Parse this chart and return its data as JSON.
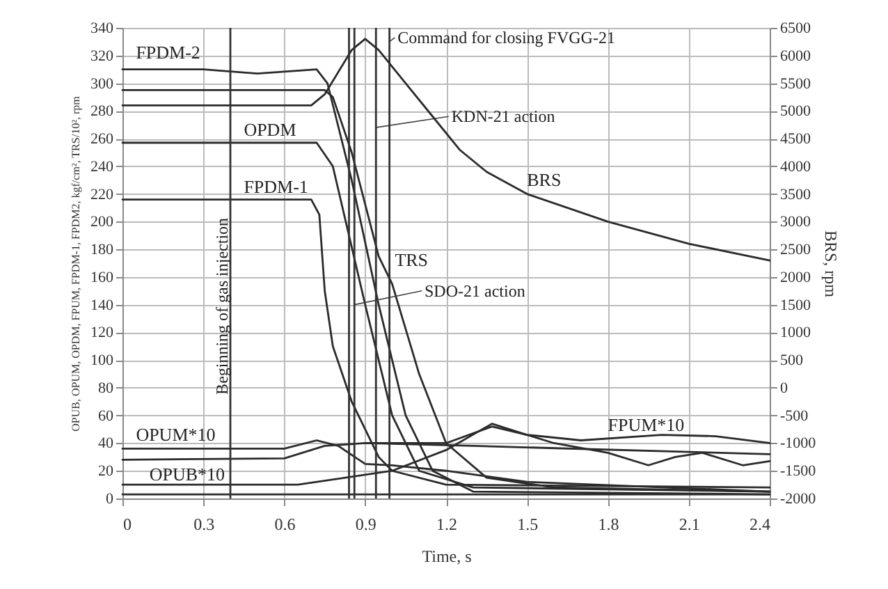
{
  "chart_data": {
    "type": "line",
    "xlabel": "Time, s",
    "ylabel": "OPUB, OPUM, OPDM, FPUM, FPDM-1, FPDM2, kgf/cm², TRS/10², rpm",
    "y2label": "BRS, rpm",
    "xlim": [
      0,
      2.4
    ],
    "xticks": [
      0,
      0.3,
      0.6,
      0.9,
      1.2,
      1.5,
      1.8,
      2.1,
      2.4
    ],
    "ylim": [
      0,
      340
    ],
    "yticks": [
      0,
      20,
      40,
      60,
      80,
      100,
      120,
      140,
      160,
      180,
      200,
      220,
      240,
      260,
      280,
      300,
      320,
      340
    ],
    "y2lim": [
      -2000,
      6500
    ],
    "y2ticks": [
      -2000,
      -1500,
      -1000,
      -500,
      0,
      500,
      1000,
      1500,
      2000,
      2500,
      3000,
      3500,
      4000,
      4500,
      5000,
      5500,
      6000,
      6500
    ],
    "grid": true,
    "legend": false,
    "line_style": "solid",
    "marker": "none",
    "series": [
      {
        "name": "FPDM-2",
        "color": "#2b2b2b",
        "x": [
          0,
          0.3,
          0.5,
          0.72,
          0.76,
          0.85,
          0.95,
          1.05,
          1.15,
          1.3,
          2.4
        ],
        "values": [
          310,
          310,
          307,
          310,
          300,
          230,
          140,
          60,
          20,
          5,
          3
        ]
      },
      {
        "name": "TRS",
        "color": "#2b2b2b",
        "x": [
          0,
          0.4,
          0.75,
          0.78,
          0.85,
          0.95,
          1.0,
          1.1,
          1.2,
          1.35,
          1.6,
          2.4
        ],
        "values": [
          295,
          295,
          295,
          290,
          250,
          175,
          155,
          90,
          40,
          15,
          8,
          5
        ]
      },
      {
        "name": "OPDM",
        "color": "#2b2b2b",
        "x": [
          0,
          0.3,
          0.72,
          0.78,
          0.9,
          1.0,
          1.1,
          1.3,
          2.4
        ],
        "values": [
          257,
          257,
          257,
          240,
          140,
          60,
          20,
          8,
          5
        ]
      },
      {
        "name": "FPDM-1",
        "color": "#2b2b2b",
        "x": [
          0,
          0.3,
          0.7,
          0.73,
          0.75,
          0.78,
          0.85,
          0.95,
          1.0,
          1.2,
          2.4
        ],
        "values": [
          216,
          216,
          216,
          205,
          150,
          110,
          70,
          30,
          20,
          10,
          8
        ]
      },
      {
        "name": "BRS",
        "color": "#2b2b2b",
        "axis": "y2",
        "x": [
          0,
          0.7,
          0.75,
          0.85,
          0.9,
          0.95,
          1.05,
          1.15,
          1.25,
          1.35,
          1.5,
          1.8,
          2.1,
          2.4
        ],
        "values": [
          5100,
          5100,
          5300,
          6100,
          6300,
          6100,
          5500,
          4900,
          4300,
          3900,
          3500,
          3000,
          2600,
          2300
        ]
      },
      {
        "name": "OPUM*10",
        "color": "#2b2b2b",
        "x": [
          0,
          0.6,
          0.72,
          0.8,
          0.9,
          1.0,
          1.2,
          1.5,
          2.4
        ],
        "values": [
          36,
          36,
          42,
          38,
          25,
          24,
          20,
          12,
          5
        ]
      },
      {
        "name": "OPUB*10",
        "color": "#2b2b2b",
        "x": [
          0,
          0.65,
          1.0,
          1.2,
          1.37,
          1.5,
          1.6,
          1.8,
          1.95,
          2.05,
          2.15,
          2.3,
          2.4
        ],
        "values": [
          10,
          10,
          20,
          35,
          54,
          46,
          40,
          33,
          24,
          30,
          33,
          24,
          27
        ]
      },
      {
        "name": "FPUM*10",
        "color": "#2b2b2b",
        "x": [
          0,
          0.6,
          0.75,
          0.9,
          1.2,
          1.37,
          1.5,
          1.7,
          2.0,
          2.2,
          2.4
        ],
        "values": [
          28,
          29,
          38,
          40,
          40,
          52,
          46,
          42,
          46,
          45,
          40
        ]
      },
      {
        "color": "#2b2b2b",
        "x": [
          0.9,
          1.3,
          2.4
        ],
        "values": [
          40,
          38,
          32
        ]
      },
      {
        "color": "#2b2b2b",
        "x": [
          0,
          2.4
        ],
        "values": [
          3,
          3
        ]
      }
    ],
    "ref_lines": [
      {
        "axis": "x",
        "value": 0.4,
        "label": "Beginning of gas injection"
      },
      {
        "axis": "x",
        "value": 0.84
      },
      {
        "axis": "x",
        "value": 0.86,
        "label": "SDO-21 action"
      },
      {
        "axis": "x",
        "value": 0.94,
        "label": "KDN-21 action"
      },
      {
        "axis": "x",
        "value": 0.99,
        "label": "Command for closing FVGG-21"
      }
    ]
  }
}
